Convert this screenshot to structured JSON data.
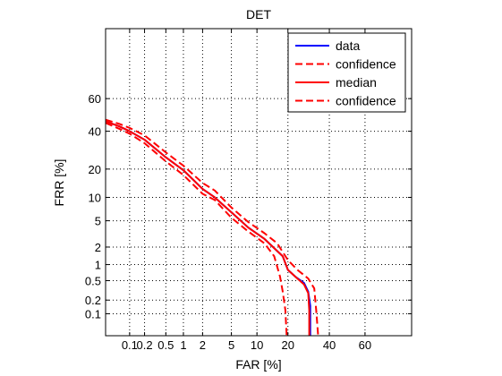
{
  "chart_data": {
    "type": "line",
    "title": "DET",
    "xlabel": "FAR [%]",
    "ylabel": "FRR [%]",
    "scale": "probit",
    "xlim": [
      0.03,
      82
    ],
    "ylim": [
      0.03,
      91
    ],
    "x_ticks": [
      {
        "value": 0.1,
        "label": "0.1"
      },
      {
        "value": 0.2,
        "label": "0.2"
      },
      {
        "value": 0.5,
        "label": "0.5"
      },
      {
        "value": 1,
        "label": "1"
      },
      {
        "value": 2,
        "label": "2"
      },
      {
        "value": 5,
        "label": "5"
      },
      {
        "value": 10,
        "label": "10"
      },
      {
        "value": 20,
        "label": "20"
      },
      {
        "value": 40,
        "label": "40"
      },
      {
        "value": 60,
        "label": "60"
      }
    ],
    "y_ticks": [
      {
        "value": 0.1,
        "label": "0.1"
      },
      {
        "value": 0.2,
        "label": "0.2"
      },
      {
        "value": 0.5,
        "label": "0.5"
      },
      {
        "value": 1,
        "label": "1"
      },
      {
        "value": 2,
        "label": "2"
      },
      {
        "value": 5,
        "label": "5"
      },
      {
        "value": 10,
        "label": "10"
      },
      {
        "value": 20,
        "label": "20"
      },
      {
        "value": 40,
        "label": "40"
      },
      {
        "value": 60,
        "label": "60"
      }
    ],
    "grid": true,
    "legend_position": "top-right",
    "series": [
      {
        "name": "data",
        "color": "#0000ff",
        "style": "solid",
        "points": [
          [
            0.03,
            46
          ],
          [
            0.06,
            43
          ],
          [
            0.1,
            40
          ],
          [
            0.2,
            35
          ],
          [
            0.5,
            25.5
          ],
          [
            1,
            19.5
          ],
          [
            2,
            12.5
          ],
          [
            3,
            10
          ],
          [
            5,
            6.5
          ],
          [
            8,
            4
          ],
          [
            12,
            2.7
          ],
          [
            18,
            1.4
          ],
          [
            20,
            0.8
          ],
          [
            23,
            0.6
          ],
          [
            27,
            0.45
          ],
          [
            29,
            0.3
          ],
          [
            30,
            0.15
          ],
          [
            30,
            0.03
          ]
        ]
      },
      {
        "name": "confidence",
        "color": "#ff0000",
        "style": "dashed",
        "points": [
          [
            0.03,
            47
          ],
          [
            0.06,
            44.5
          ],
          [
            0.1,
            42
          ],
          [
            0.2,
            37.5
          ],
          [
            0.5,
            28
          ],
          [
            1,
            21.5
          ],
          [
            2,
            14.5
          ],
          [
            3,
            12
          ],
          [
            5,
            7.5
          ],
          [
            8,
            4.8
          ],
          [
            12,
            3.3
          ],
          [
            16,
            2.3
          ],
          [
            20,
            1.2
          ],
          [
            24,
            0.8
          ],
          [
            29,
            0.55
          ],
          [
            32,
            0.35
          ],
          [
            33,
            0.12
          ],
          [
            34,
            0.03
          ]
        ]
      },
      {
        "name": "median",
        "color": "#ff0000",
        "style": "solid",
        "points": [
          [
            0.03,
            46
          ],
          [
            0.06,
            43
          ],
          [
            0.1,
            40
          ],
          [
            0.2,
            35
          ],
          [
            0.5,
            25.5
          ],
          [
            1,
            19.5
          ],
          [
            2,
            12.5
          ],
          [
            3,
            10
          ],
          [
            5,
            6.5
          ],
          [
            8,
            4
          ],
          [
            12,
            2.7
          ],
          [
            18,
            1.4
          ],
          [
            20,
            0.8
          ],
          [
            23,
            0.6
          ],
          [
            27,
            0.42
          ],
          [
            29,
            0.28
          ],
          [
            29.5,
            0.12
          ],
          [
            29.5,
            0.03
          ]
        ]
      },
      {
        "name": "confidence",
        "color": "#ff0000",
        "style": "dashed",
        "points": [
          [
            0.03,
            45
          ],
          [
            0.06,
            41.5
          ],
          [
            0.1,
            38.5
          ],
          [
            0.2,
            33
          ],
          [
            0.5,
            23.5
          ],
          [
            1,
            17.5
          ],
          [
            2,
            11
          ],
          [
            3,
            9.3
          ],
          [
            5,
            5.5
          ],
          [
            8,
            3.5
          ],
          [
            12,
            2.3
          ],
          [
            15,
            1.4
          ],
          [
            17,
            0.6
          ],
          [
            18,
            0.3
          ],
          [
            19,
            0.12
          ],
          [
            19.5,
            0.03
          ]
        ]
      }
    ]
  }
}
